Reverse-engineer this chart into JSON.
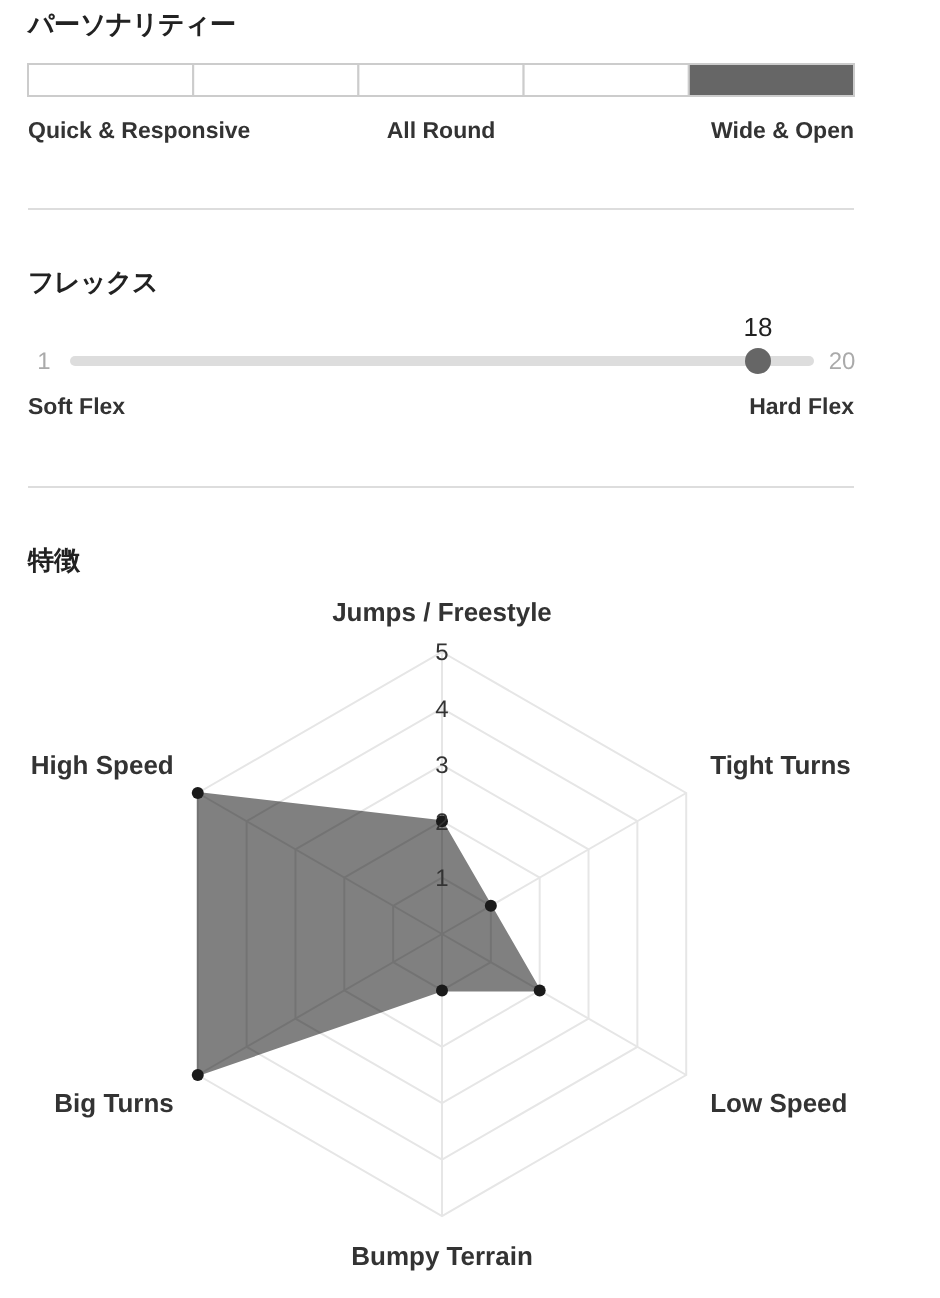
{
  "chart_data": [
    {
      "type": "other",
      "title": "パーソナリティー",
      "categories": [
        "Quick & Responsive",
        null,
        "All Round",
        null,
        "Wide & Open"
      ],
      "colors": [
        "#ffffff",
        "#ffffff",
        "#ffffff",
        "#ffffff",
        "#666666"
      ]
    },
    {
      "type": "other",
      "title": "フレックス",
      "values": [
        18
      ],
      "color": "#666666",
      "data_labels": true,
      "annotations": [
        "1",
        "20",
        "Soft Flex",
        "Hard Flex"
      ]
    },
    {
      "type": "radar",
      "title": "特徴",
      "categories": [
        "Jumps / Freestyle",
        "Tight Turns",
        "Low Speed",
        "Bumpy Terrain",
        "Big Turns",
        "High Speed"
      ],
      "series": [
        {
          "color": "#808080",
          "values": [
            2,
            1,
            2,
            1,
            5,
            5
          ]
        }
      ],
      "ylim": [
        0,
        5
      ],
      "yticks": [
        1,
        2,
        3,
        4,
        5
      ],
      "grid": true,
      "marker": "circle"
    }
  ]
}
